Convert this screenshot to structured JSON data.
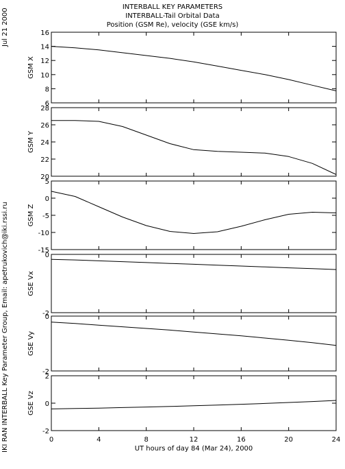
{
  "header": {
    "line1": "INTERBALL KEY PARAMETERS",
    "line2": "INTERBALL-Tail Orbital Data",
    "line3": "Position (GSM Re), velocity (GSE km/s)"
  },
  "side": {
    "date": "Jul 21 2000",
    "credit": "IKI RAN INTERBALL Key Parameter Group, Email: apetrukovich@iki.rssi.ru"
  },
  "chart_data": {
    "type": "line",
    "xlabel": "UT hours of day  84 (Mar 24), 2000",
    "xlim": [
      0,
      24
    ],
    "xticks": [
      0,
      4,
      8,
      12,
      16,
      20,
      24
    ],
    "x": [
      0,
      2,
      4,
      6,
      8,
      10,
      12,
      14,
      16,
      18,
      20,
      22,
      24
    ],
    "panels": [
      {
        "ylabel": "GSM X",
        "ylim": [
          6,
          16
        ],
        "yticks": [
          6,
          8,
          10,
          12,
          14,
          16
        ],
        "values": [
          14.0,
          13.8,
          13.5,
          13.1,
          12.7,
          12.3,
          11.8,
          11.2,
          10.6,
          10.0,
          9.3,
          8.5,
          7.7
        ]
      },
      {
        "ylabel": "GSM Y",
        "ylim": [
          20,
          28
        ],
        "yticks": [
          20,
          22,
          24,
          26,
          28
        ],
        "values": [
          26.5,
          26.5,
          26.4,
          25.8,
          24.8,
          23.8,
          23.1,
          22.9,
          22.8,
          22.7,
          22.3,
          21.5,
          20.2
        ]
      },
      {
        "ylabel": "GSM Z",
        "ylim": [
          -15,
          5
        ],
        "yticks": [
          -15,
          -10,
          -5,
          0,
          5
        ],
        "values": [
          2.0,
          0.5,
          -2.5,
          -5.5,
          -8.0,
          -9.7,
          -10.3,
          -9.8,
          -8.2,
          -6.3,
          -4.7,
          -4.1,
          -4.3
        ]
      },
      {
        "ylabel": "GSE Vx",
        "ylim": [
          -2,
          0
        ],
        "yticks": [
          -2,
          0
        ],
        "values": [
          -0.17,
          -0.19,
          -0.22,
          -0.25,
          -0.28,
          -0.31,
          -0.34,
          -0.37,
          -0.4,
          -0.43,
          -0.46,
          -0.49,
          -0.52
        ]
      },
      {
        "ylabel": "GSE Vy",
        "ylim": [
          -2,
          0
        ],
        "yticks": [
          -2,
          0
        ],
        "values": [
          -0.22,
          -0.27,
          -0.33,
          -0.39,
          -0.45,
          -0.51,
          -0.58,
          -0.65,
          -0.72,
          -0.8,
          -0.88,
          -0.97,
          -1.07
        ]
      },
      {
        "ylabel": "GSE Vz",
        "ylim": [
          -2,
          2
        ],
        "yticks": [
          -2,
          0,
          2
        ],
        "values": [
          -0.42,
          -0.39,
          -0.36,
          -0.32,
          -0.28,
          -0.24,
          -0.19,
          -0.14,
          -0.08,
          -0.02,
          0.05,
          0.12,
          0.2
        ]
      }
    ]
  }
}
